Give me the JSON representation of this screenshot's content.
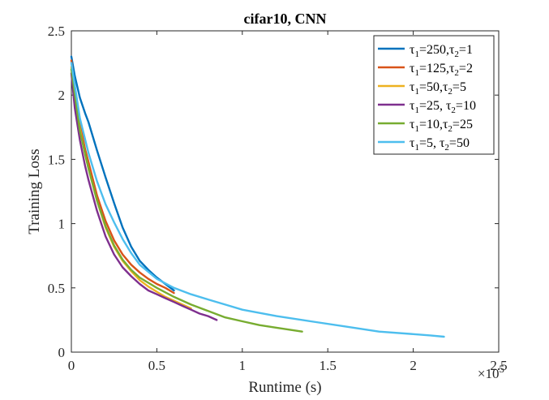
{
  "chart_data": {
    "type": "line",
    "title": "cifar10, CNN",
    "xlabel": "Runtime (s)",
    "ylabel": "Training Loss",
    "x_exponent_label": "×10",
    "x_exponent_power": "5",
    "xlim": [
      0,
      250000
    ],
    "ylim": [
      0,
      2.5
    ],
    "xticks": [
      0,
      50000,
      100000,
      150000,
      200000,
      250000
    ],
    "xtick_labels": [
      "0",
      "0.5",
      "1",
      "1.5",
      "2",
      "2.5"
    ],
    "yticks": [
      0,
      0.5,
      1,
      1.5,
      2,
      2.5
    ],
    "ytick_labels": [
      "0",
      "0.5",
      "1",
      "1.5",
      "2",
      "2.5"
    ],
    "grid": false,
    "legend_position": "top-right",
    "series": [
      {
        "tau1": "250",
        "tau2": "1",
        "sep": ",",
        "color": "#0072BD",
        "x": [
          0,
          2000,
          5000,
          8000,
          10000,
          15000,
          20000,
          25000,
          30000,
          35000,
          40000,
          45000,
          50000,
          55000,
          60000
        ],
        "y": [
          2.3,
          2.15,
          1.98,
          1.86,
          1.79,
          1.57,
          1.36,
          1.16,
          0.97,
          0.82,
          0.71,
          0.64,
          0.58,
          0.53,
          0.48
        ]
      },
      {
        "tau1": "125",
        "tau2": "2",
        "sep": ",",
        "color": "#D95319",
        "x": [
          0,
          2000,
          5000,
          8000,
          10000,
          15000,
          20000,
          25000,
          30000,
          35000,
          40000,
          45000,
          50000,
          55000,
          60000
        ],
        "y": [
          2.27,
          2.02,
          1.78,
          1.58,
          1.48,
          1.22,
          1.02,
          0.87,
          0.76,
          0.68,
          0.62,
          0.57,
          0.53,
          0.5,
          0.46
        ]
      },
      {
        "tau1": "50",
        "tau2": "5",
        "sep": ",",
        "color": "#EDB120",
        "x": [
          0,
          2000,
          5000,
          8000,
          10000,
          15000,
          20000,
          25000,
          30000,
          35000,
          40000,
          45000,
          50000,
          55000,
          60000,
          65000,
          70000
        ],
        "y": [
          2.22,
          1.97,
          1.74,
          1.54,
          1.43,
          1.18,
          0.97,
          0.82,
          0.71,
          0.63,
          0.56,
          0.51,
          0.47,
          0.43,
          0.4,
          0.37,
          0.34
        ]
      },
      {
        "tau1": "25",
        "tau2": "10",
        "sep": ", ",
        "color": "#7E2F8E",
        "x": [
          0,
          2000,
          5000,
          8000,
          10000,
          15000,
          20000,
          25000,
          30000,
          35000,
          40000,
          45000,
          50000,
          55000,
          60000,
          65000,
          70000,
          75000,
          80000,
          85000
        ],
        "y": [
          2.17,
          1.9,
          1.65,
          1.45,
          1.34,
          1.1,
          0.9,
          0.76,
          0.66,
          0.59,
          0.53,
          0.48,
          0.45,
          0.42,
          0.39,
          0.36,
          0.33,
          0.3,
          0.28,
          0.25
        ]
      },
      {
        "tau1": "10",
        "tau2": "25",
        "sep": ",",
        "color": "#77AC30",
        "x": [
          0,
          5000,
          10000,
          15000,
          20000,
          25000,
          30000,
          35000,
          40000,
          50000,
          60000,
          70000,
          80000,
          90000,
          100000,
          110000,
          120000,
          135000
        ],
        "y": [
          2.2,
          1.72,
          1.43,
          1.18,
          0.98,
          0.83,
          0.72,
          0.64,
          0.58,
          0.5,
          0.43,
          0.37,
          0.32,
          0.27,
          0.24,
          0.21,
          0.19,
          0.16
        ]
      },
      {
        "tau1": "5",
        "tau2": "50",
        "sep": ", ",
        "color": "#4DBEEE",
        "x": [
          0,
          5000,
          10000,
          15000,
          20000,
          25000,
          30000,
          35000,
          40000,
          50000,
          60000,
          70000,
          80000,
          90000,
          100000,
          120000,
          140000,
          160000,
          180000,
          200000,
          210000,
          218000
        ],
        "y": [
          2.25,
          1.82,
          1.55,
          1.33,
          1.15,
          1.01,
          0.88,
          0.77,
          0.68,
          0.57,
          0.5,
          0.45,
          0.41,
          0.37,
          0.33,
          0.28,
          0.24,
          0.2,
          0.16,
          0.14,
          0.13,
          0.12
        ]
      }
    ]
  }
}
